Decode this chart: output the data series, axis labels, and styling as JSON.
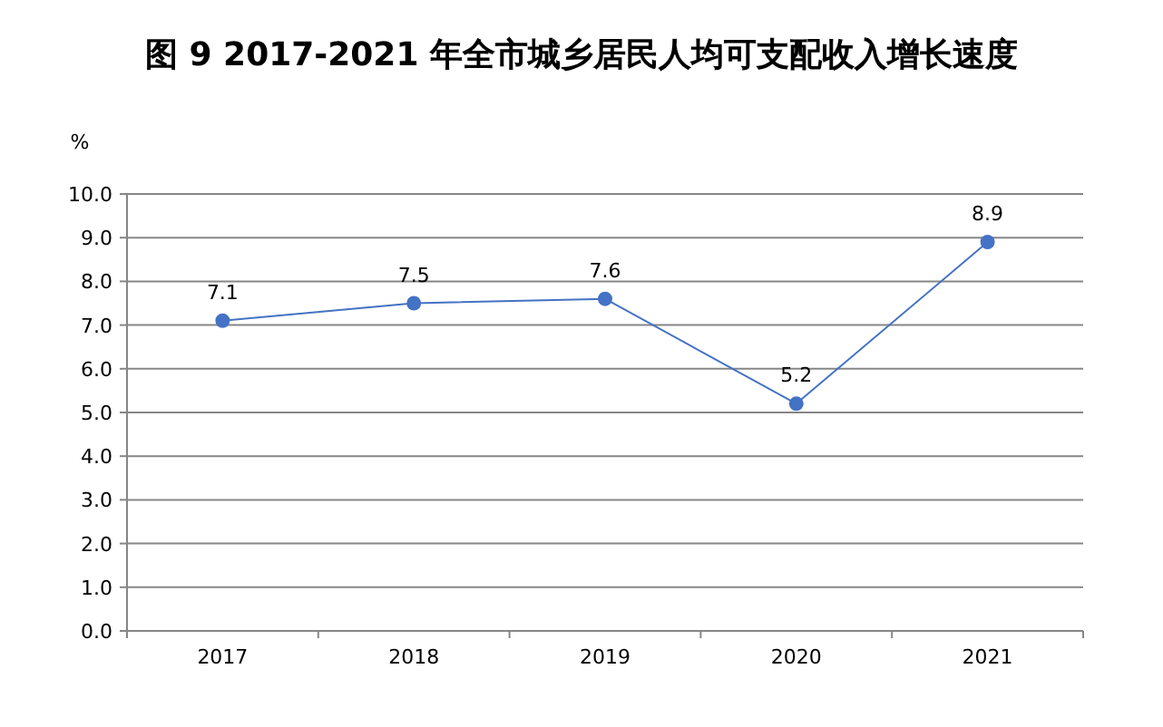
{
  "chart_data": {
    "type": "line",
    "title": "图 9   2017-2021 年全市城乡居民人均可支配收入增长速度",
    "ylabel": "%",
    "categories": [
      "2017",
      "2018",
      "2019",
      "2020",
      "2021"
    ],
    "series": [
      {
        "color": "#4472c4",
        "values": [
          7.1,
          7.5,
          7.6,
          5.2,
          8.9
        ]
      }
    ],
    "ylim": [
      0,
      10
    ],
    "yticks": [
      {
        "value": 0,
        "label": "0.0"
      },
      {
        "value": 1,
        "label": "1.0"
      },
      {
        "value": 2,
        "label": "2.0"
      },
      {
        "value": 3,
        "label": "3.0"
      },
      {
        "value": 4,
        "label": "4.0"
      },
      {
        "value": 5,
        "label": "5.0"
      },
      {
        "value": 6,
        "label": "6.0"
      },
      {
        "value": 7,
        "label": "7.0"
      },
      {
        "value": 8,
        "label": "8.0"
      },
      {
        "value": 9,
        "label": "9.0"
      },
      {
        "value": 10,
        "label": "10.0"
      }
    ],
    "grid": "y",
    "marker": "circle",
    "line_style": "solid",
    "data_labels": true
  }
}
